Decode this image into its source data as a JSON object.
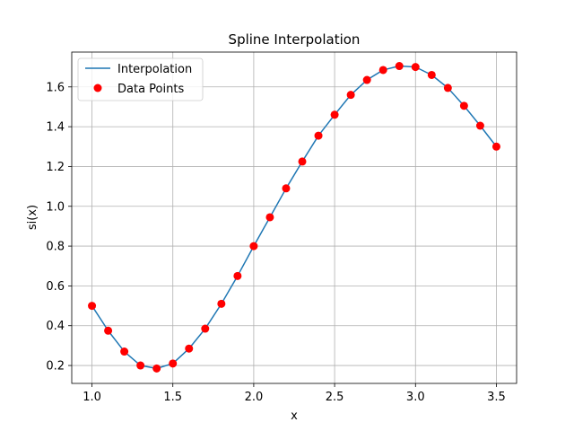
{
  "chart_data": {
    "type": "line",
    "title": "Spline Interpolation",
    "xlabel": "x",
    "ylabel": "si(x)",
    "xlim": [
      0.875,
      3.625
    ],
    "ylim": [
      0.11,
      1.775
    ],
    "xticks": [
      1.0,
      1.5,
      2.0,
      2.5,
      3.0,
      3.5
    ],
    "xtick_labels": [
      "1.0",
      "1.5",
      "2.0",
      "2.5",
      "3.0",
      "3.5"
    ],
    "yticks": [
      0.2,
      0.4,
      0.6,
      0.8,
      1.0,
      1.2,
      1.4,
      1.6
    ],
    "ytick_labels": [
      "0.2",
      "0.4",
      "0.6",
      "0.8",
      "1.0",
      "1.2",
      "1.4",
      "1.6"
    ],
    "grid": true,
    "legend_position": "top-left",
    "colors": {
      "line": "#1f77b4",
      "points": "#ff0000"
    },
    "series": [
      {
        "name": "Interpolation",
        "kind": "line",
        "x": [
          1.0,
          1.1,
          1.2,
          1.3,
          1.4,
          1.5,
          1.6,
          1.7,
          1.8,
          1.9,
          2.0,
          2.1,
          2.2,
          2.3,
          2.4,
          2.5,
          2.6,
          2.7,
          2.8,
          2.9,
          3.0,
          3.1,
          3.2,
          3.3,
          3.4,
          3.5
        ],
        "y": [
          0.5,
          0.375,
          0.27,
          0.2,
          0.185,
          0.21,
          0.285,
          0.385,
          0.51,
          0.65,
          0.8,
          0.945,
          1.09,
          1.225,
          1.355,
          1.46,
          1.56,
          1.635,
          1.685,
          1.705,
          1.7,
          1.66,
          1.595,
          1.505,
          1.405,
          1.3
        ]
      },
      {
        "name": "Data Points",
        "kind": "scatter",
        "x": [
          1.0,
          1.1,
          1.2,
          1.3,
          1.4,
          1.5,
          1.6,
          1.7,
          1.8,
          1.9,
          2.0,
          2.1,
          2.2,
          2.3,
          2.4,
          2.5,
          2.6,
          2.7,
          2.8,
          2.9,
          3.0,
          3.1,
          3.2,
          3.3,
          3.4,
          3.5
        ],
        "y": [
          0.5,
          0.375,
          0.27,
          0.2,
          0.185,
          0.21,
          0.285,
          0.385,
          0.51,
          0.65,
          0.8,
          0.945,
          1.09,
          1.225,
          1.355,
          1.46,
          1.56,
          1.635,
          1.685,
          1.705,
          1.7,
          1.66,
          1.595,
          1.505,
          1.405,
          1.3
        ]
      }
    ]
  }
}
